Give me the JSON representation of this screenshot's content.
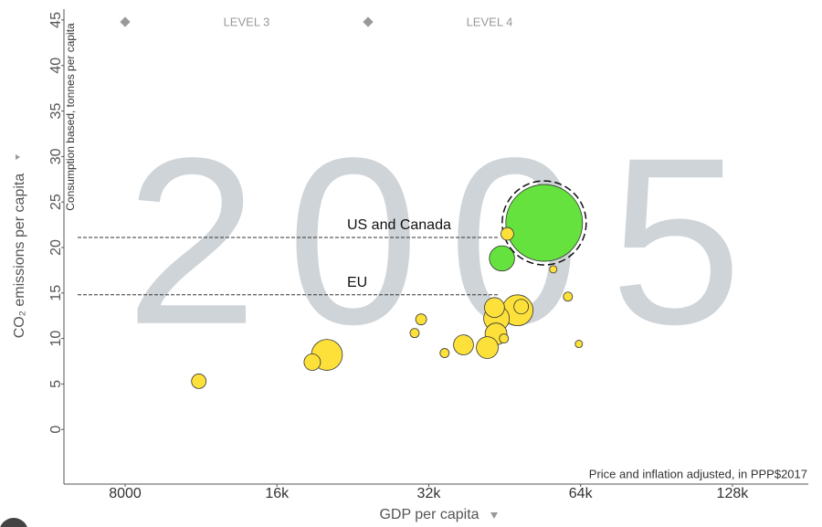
{
  "chart_data": {
    "type": "bubble",
    "year": "2005",
    "levels": [
      "LEVEL 3",
      "LEVEL 4"
    ],
    "ylabel": "CO₂ emissions per capita",
    "ysublabel": "Consumption based, tonnes per capita",
    "xlabel": "GDP per capita",
    "xsublabel": "Price and inflation adjusted, in PPP$2017",
    "xscale": "log",
    "xlim": [
      6050,
      181000
    ],
    "xticks": [
      8000,
      {
        "value": 16000,
        "label": "16k"
      },
      {
        "value": 32000,
        "label": "32k"
      },
      {
        "value": 64000,
        "label": "64k"
      },
      {
        "value": 128000,
        "label": "128k"
      }
    ],
    "ylim": [
      -6,
      47
    ],
    "yticks": [
      0,
      5,
      10,
      15,
      20,
      25,
      30,
      35,
      40,
      45
    ],
    "x": [
      54200,
      48000,
      20100,
      43600,
      44700,
      43500,
      41800,
      43200,
      37500,
      18800,
      11200,
      48800,
      45800,
      30900,
      30000,
      60400,
      45100,
      34400,
      56500,
      63500
    ],
    "values": [
      22.7,
      13.1,
      8.2,
      12.2,
      18.8,
      10.5,
      9.0,
      13.4,
      9.3,
      7.4,
      5.3,
      13.5,
      21.5,
      12.1,
      10.6,
      14.6,
      10.0,
      8.4,
      17.6,
      9.4
    ],
    "sizes": [
      296,
      48,
      48,
      33,
      32,
      24,
      24,
      20,
      20,
      13.6,
      10.7,
      10.7,
      8.2,
      6,
      4.2,
      4.2,
      4.2,
      4.2,
      2.7,
      2.7
    ],
    "colors": [
      "#66e23e",
      "#fde13a",
      "#fde13a",
      "#fde13a",
      "#66e23e",
      "#fde13a",
      "#fde13a",
      "#fde13a",
      "#fde13a",
      "#fde13a",
      "#fde13a",
      "#fde13a",
      "#fde13a",
      "#fde13a",
      "#fde13a",
      "#fde13a",
      "#fde13a",
      "#fde13a",
      "#fde13a",
      "#fde13a"
    ],
    "selected_index": 0,
    "annotations": [
      {
        "label": "US and Canada",
        "value": 21.1
      },
      {
        "label": "EU",
        "value": 14.8
      }
    ]
  }
}
